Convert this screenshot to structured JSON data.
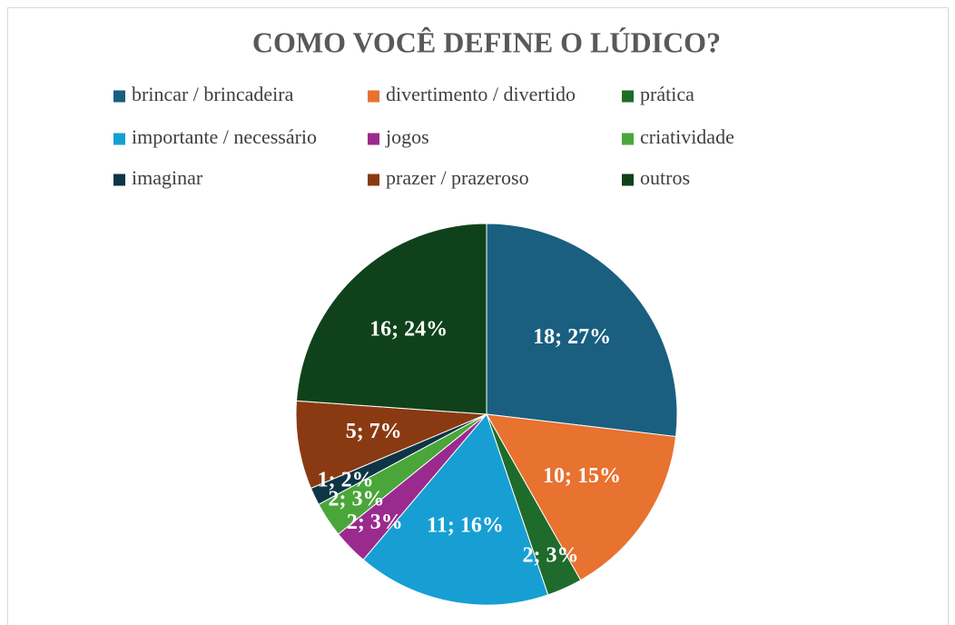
{
  "chart_data": {
    "type": "pie",
    "title": "COMO VOCÊ DEFINE O LÚDICO?",
    "categories": [
      "brincar / brincadeira",
      "divertimento / divertido",
      "prática",
      "importante / necessário",
      "jogos",
      "criatividade",
      "imaginar",
      "prazer / prazeroso",
      "outros"
    ],
    "values": [
      18,
      10,
      2,
      11,
      2,
      2,
      1,
      5,
      16
    ],
    "value_labels": [
      "18; 27%",
      "10; 15%",
      "2; 3%",
      "11; 16%",
      "2; 3%",
      "2; 3%",
      "1; 2%",
      "5; 7%",
      "16; 24%"
    ],
    "colors": [
      "#1a5f80",
      "#e8722f",
      "#1f6b2b",
      "#179fd3",
      "#9a2a8e",
      "#4aa63a",
      "#0e3546",
      "#8a3a12",
      "#0f421a"
    ],
    "legend": "top"
  }
}
